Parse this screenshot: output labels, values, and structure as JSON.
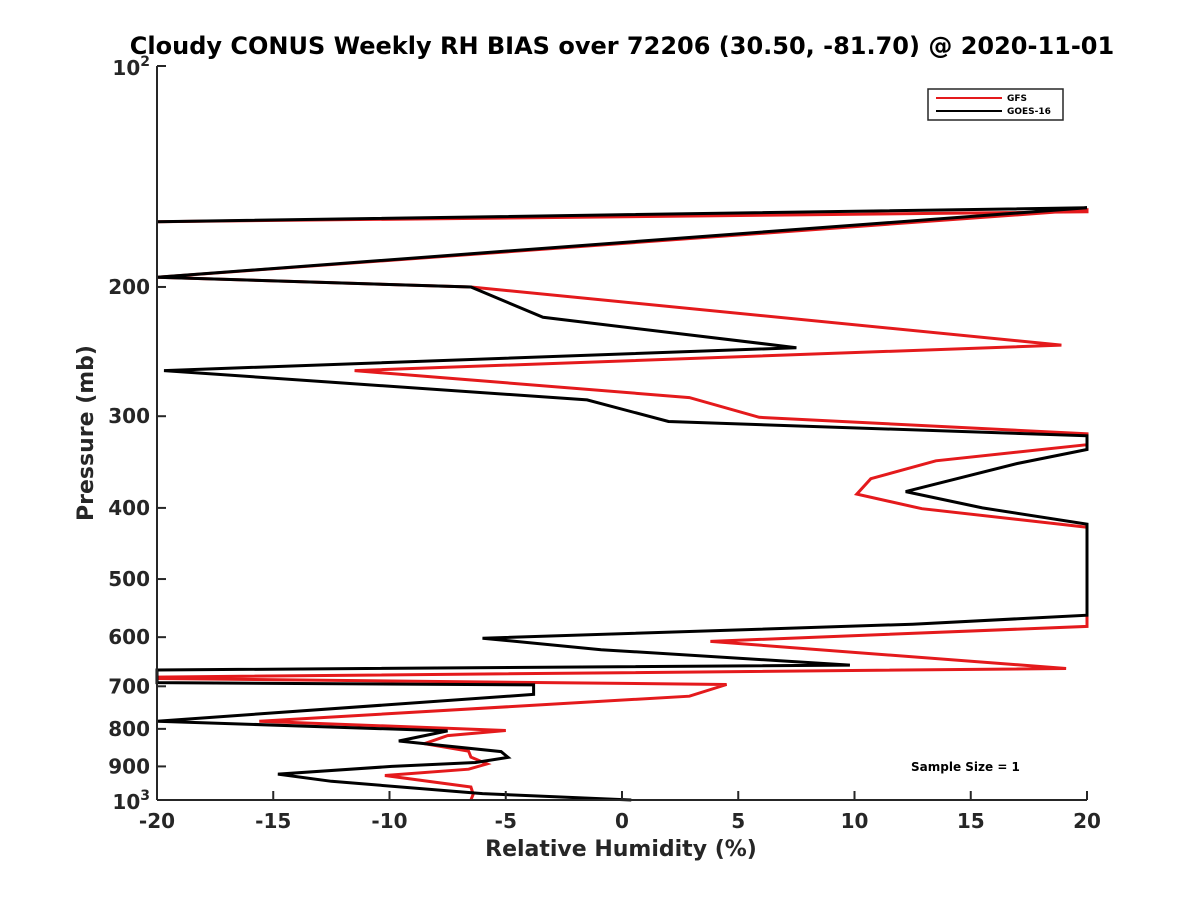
{
  "chart_data": {
    "type": "line",
    "title": "Cloudy CONUS Weekly RH BIAS over 72206 (30.50, -81.70) @ 2020-11-01",
    "xlabel": "Relative Humidity (%)",
    "ylabel": "Pressure (mb)",
    "xlim": [
      -20,
      20
    ],
    "ylim": [
      100,
      1000
    ],
    "yscale": "log",
    "y_reversed": true,
    "grid": false,
    "x_ticks": [
      -20,
      -15,
      -10,
      -5,
      0,
      5,
      10,
      15,
      20
    ],
    "x_tick_labels": [
      "-20",
      "-15",
      "-10",
      "-5",
      "0",
      "5",
      "10",
      "15",
      "20"
    ],
    "y_ticks": [
      200,
      300,
      400,
      500,
      600,
      700,
      800,
      900
    ],
    "y_tick_labels": [
      "200",
      "300",
      "400",
      "500",
      "600",
      "700",
      "800",
      "900"
    ],
    "y_end_labels": {
      "top": {
        "base": "10",
        "exp": "2",
        "value": 100
      },
      "bottom": {
        "base": "10",
        "exp": "3",
        "value": 1000
      }
    },
    "legend": {
      "placement": "top-right",
      "entries": [
        "GFS",
        "GOES-16"
      ]
    },
    "annotation": "Sample Size = 1",
    "series": [
      {
        "name": "GFS",
        "color": "#e41a1c",
        "points": [
          [
            -20,
            163
          ],
          [
            20,
            158
          ],
          [
            20,
            157
          ],
          [
            -20,
            194
          ],
          [
            -6.5,
            200
          ],
          [
            18.9,
            240
          ],
          [
            -11.5,
            260
          ],
          [
            2.9,
            283
          ],
          [
            5.9,
            301
          ],
          [
            20,
            317
          ],
          [
            20,
            328
          ],
          [
            13.5,
            345
          ],
          [
            10.7,
            365
          ],
          [
            10.1,
            383
          ],
          [
            12.9,
            401
          ],
          [
            20,
            425
          ],
          [
            20,
            580
          ],
          [
            3.8,
            608
          ],
          [
            19.1,
            662
          ],
          [
            -20,
            680
          ],
          [
            -20,
            683
          ],
          [
            4.5,
            696
          ],
          [
            2.9,
            722
          ],
          [
            -15.6,
            781
          ],
          [
            -5,
            804
          ],
          [
            -7.5,
            817
          ],
          [
            -8.5,
            838
          ],
          [
            -6.6,
            858
          ],
          [
            -6.5,
            874
          ],
          [
            -5.8,
            893
          ],
          [
            -6.6,
            908
          ],
          [
            -10.2,
            926
          ],
          [
            -6.5,
            960
          ],
          [
            -6.4,
            982
          ],
          [
            -6.5,
            1000
          ]
        ]
      },
      {
        "name": "GOES-16",
        "color": "#000000",
        "points": [
          [
            -20,
            163
          ],
          [
            20,
            156
          ],
          [
            -20,
            194
          ],
          [
            -6.5,
            200
          ],
          [
            -3.4,
            220
          ],
          [
            7.5,
            242
          ],
          [
            -19.7,
            260
          ],
          [
            -1.5,
            285
          ],
          [
            2,
            305
          ],
          [
            20,
            319
          ],
          [
            20,
            333
          ],
          [
            17,
            348
          ],
          [
            12.2,
            380
          ],
          [
            15.5,
            400
          ],
          [
            20,
            421
          ],
          [
            20,
            560
          ],
          [
            12.5,
            576
          ],
          [
            -6,
            602
          ],
          [
            -0.9,
            624
          ],
          [
            9.8,
            655
          ],
          [
            -20,
            665
          ],
          [
            -20,
            692
          ],
          [
            -3.8,
            697
          ],
          [
            -3.8,
            718
          ],
          [
            -20,
            781
          ],
          [
            -7.5,
            805
          ],
          [
            -9.6,
            831
          ],
          [
            -5.2,
            859
          ],
          [
            -4.9,
            875
          ],
          [
            -6.3,
            889
          ],
          [
            -9.9,
            900
          ],
          [
            -14.8,
            922
          ],
          [
            -12.5,
            943
          ],
          [
            -6,
            980
          ],
          [
            0.4,
            1000
          ]
        ]
      }
    ]
  }
}
